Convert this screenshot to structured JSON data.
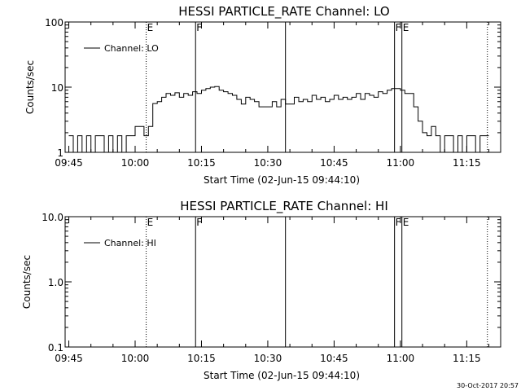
{
  "chart_data": [
    {
      "type": "line",
      "title": "HESSI PARTICLE_RATE Channel: LO",
      "xlabel": "Start Time (02-Jun-15 09:44:10)",
      "ylabel": "Counts/sec",
      "yscale": "log",
      "ylim": [
        1,
        100
      ],
      "xlim": [
        "09:44:10",
        "11:22:40"
      ],
      "x_ticks": [
        "09:45",
        "10:00",
        "10:15",
        "10:30",
        "10:45",
        "11:00",
        "11:15"
      ],
      "y_ticks": [
        "1",
        "10",
        "100"
      ],
      "legend": {
        "placement": "top-left",
        "entries": [
          "Channel: LO"
        ]
      },
      "grid": false,
      "markers": [
        {
          "time": "10:02:30",
          "style": "dotted",
          "label": "E"
        },
        {
          "time": "10:13:40",
          "style": "solid",
          "label": "F"
        },
        {
          "time": "10:34:00",
          "style": "solid",
          "label": ""
        },
        {
          "time": "10:58:40",
          "style": "solid",
          "label": "F"
        },
        {
          "time": "11:00:20",
          "style": "solid",
          "label": "E"
        },
        {
          "time": "11:19:40",
          "style": "dotted",
          "label": ""
        }
      ],
      "series": [
        {
          "name": "Channel: LO",
          "x": [
            "09:45",
            "09:46",
            "09:47",
            "09:48",
            "09:49",
            "09:50",
            "09:51",
            "09:52",
            "09:53",
            "09:54",
            "09:55",
            "09:56",
            "09:57",
            "09:58",
            "09:59",
            "10:00",
            "10:01",
            "10:02",
            "10:03",
            "10:04",
            "10:05",
            "10:06",
            "10:07",
            "10:08",
            "10:09",
            "10:10",
            "10:11",
            "10:12",
            "10:13",
            "10:14",
            "10:15",
            "10:16",
            "10:17",
            "10:18",
            "10:19",
            "10:20",
            "10:21",
            "10:22",
            "10:23",
            "10:24",
            "10:25",
            "10:26",
            "10:27",
            "10:28",
            "10:29",
            "10:30",
            "10:31",
            "10:32",
            "10:33",
            "10:34",
            "10:35",
            "10:36",
            "10:37",
            "10:38",
            "10:39",
            "10:40",
            "10:41",
            "10:42",
            "10:43",
            "10:44",
            "10:45",
            "10:46",
            "10:47",
            "10:48",
            "10:49",
            "10:50",
            "10:51",
            "10:52",
            "10:53",
            "10:54",
            "10:55",
            "10:56",
            "10:57",
            "10:58",
            "10:59",
            "11:00",
            "11:01",
            "11:02",
            "11:03",
            "11:04",
            "11:05",
            "11:06",
            "11:07",
            "11:08",
            "11:09",
            "11:10",
            "11:11",
            "11:12",
            "11:13",
            "11:14",
            "11:15",
            "11:16",
            "11:17",
            "11:18",
            "11:19"
          ],
          "values": [
            1.8,
            1.0,
            1.8,
            1.0,
            1.8,
            1.0,
            1.8,
            1.8,
            1.0,
            1.8,
            1.0,
            1.8,
            1.0,
            1.8,
            1.8,
            2.5,
            2.5,
            1.8,
            2.5,
            5.6,
            6.0,
            7.0,
            8.0,
            7.5,
            8.2,
            7.0,
            8.0,
            7.5,
            8.5,
            8.0,
            9.0,
            9.5,
            10.0,
            10.2,
            9.0,
            8.5,
            8.0,
            7.5,
            6.5,
            5.5,
            7.0,
            6.5,
            6.0,
            5.0,
            5.0,
            5.0,
            6.0,
            5.0,
            6.5,
            5.5,
            5.5,
            7.0,
            6.0,
            6.5,
            6.0,
            7.5,
            6.5,
            7.0,
            6.0,
            6.5,
            7.5,
            6.5,
            7.0,
            6.5,
            7.0,
            8.0,
            6.5,
            8.0,
            7.5,
            7.0,
            8.5,
            8.0,
            9.0,
            9.5,
            9.5,
            9.0,
            8.0,
            8.0,
            5.0,
            3.0,
            2.0,
            1.8,
            2.5,
            1.8,
            1.0,
            1.8,
            1.8,
            1.0,
            1.8,
            1.0,
            1.8,
            1.8,
            1.0,
            1.8,
            1.8
          ]
        }
      ]
    },
    {
      "type": "line",
      "title": "HESSI PARTICLE_RATE Channel: HI",
      "xlabel": "Start Time (02-Jun-15 09:44:10)",
      "ylabel": "Counts/sec",
      "yscale": "log",
      "ylim": [
        0.1,
        10
      ],
      "xlim": [
        "09:44:10",
        "11:22:40"
      ],
      "x_ticks": [
        "09:45",
        "10:00",
        "10:15",
        "10:30",
        "10:45",
        "11:00",
        "11:15"
      ],
      "y_ticks": [
        "0.1",
        "1.0",
        "10.0"
      ],
      "legend": {
        "placement": "top-left",
        "entries": [
          "Channel: HI"
        ]
      },
      "grid": false,
      "markers": [
        {
          "time": "10:02:30",
          "style": "dotted",
          "label": "E"
        },
        {
          "time": "10:13:40",
          "style": "solid",
          "label": "F"
        },
        {
          "time": "10:34:00",
          "style": "solid",
          "label": ""
        },
        {
          "time": "10:58:40",
          "style": "solid",
          "label": "F"
        },
        {
          "time": "11:00:20",
          "style": "solid",
          "label": "E"
        },
        {
          "time": "11:19:40",
          "style": "dotted",
          "label": ""
        }
      ],
      "series": [
        {
          "name": "Channel: HI",
          "x": [],
          "values": []
        }
      ]
    }
  ],
  "footer": {
    "timestamp": "30-Oct-2017 20:57"
  },
  "colors": {
    "background": "#ffffff",
    "foreground": "#000000"
  }
}
